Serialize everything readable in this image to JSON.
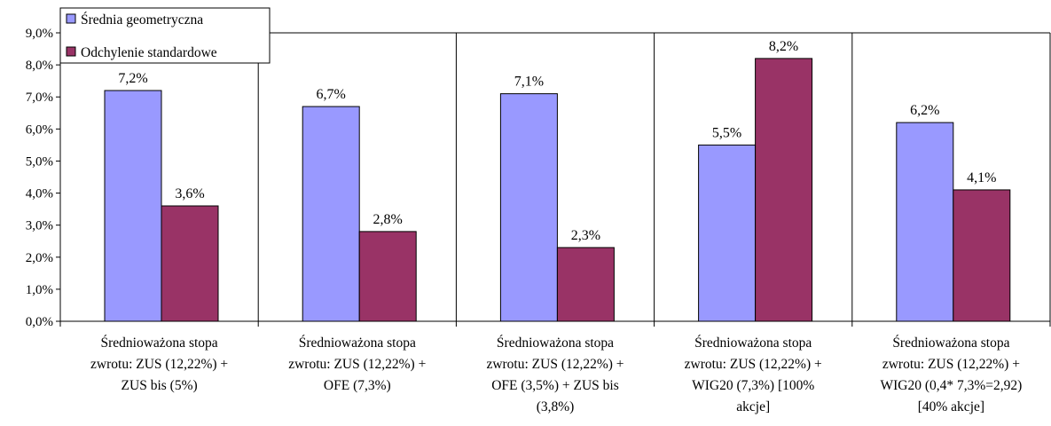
{
  "chart_data": {
    "type": "bar",
    "title": "",
    "xlabel": "",
    "ylabel": "",
    "ylim": [
      0,
      9
    ],
    "y_ticks": [
      "0,0%",
      "1,0%",
      "2,0%",
      "3,0%",
      "4,0%",
      "5,0%",
      "6,0%",
      "7,0%",
      "8,0%",
      "9,0%"
    ],
    "grid": "vertical category separators",
    "legend_position": "top-left",
    "categories": [
      [
        "Średnioważona stopa",
        "zwrotu: ZUS (12,22%) +",
        "ZUS bis (5%)"
      ],
      [
        "Średnioważona stopa",
        "zwrotu: ZUS (12,22%) +",
        "OFE (7,3%)"
      ],
      [
        "Średnioważona stopa",
        "zwrotu: ZUS (12,22%) +",
        "OFE (3,5%) + ZUS bis",
        "(3,8%)"
      ],
      [
        "Średnioważona stopa",
        "zwrotu: ZUS (12,22%) +",
        "WIG20 (7,3%) [100%",
        "akcje]"
      ],
      [
        "Średnioważona stopa",
        "zwrotu: ZUS (12,22%) +",
        "WIG20 (0,4* 7,3%=2,92)",
        "[40% akcje]"
      ]
    ],
    "series": [
      {
        "name": "Średnia geometryczna",
        "color": "#9999ff",
        "values": [
          7.2,
          6.7,
          7.1,
          5.5,
          6.2
        ],
        "labels": [
          "7,2%",
          "6,7%",
          "7,1%",
          "5,5%",
          "6,2%"
        ]
      },
      {
        "name": "Odchylenie standardowe",
        "color": "#993366",
        "values": [
          3.6,
          2.8,
          2.3,
          8.2,
          4.1
        ],
        "labels": [
          "3,6%",
          "2,8%",
          "2,3%",
          "8,2%",
          "4,1%"
        ]
      }
    ]
  }
}
